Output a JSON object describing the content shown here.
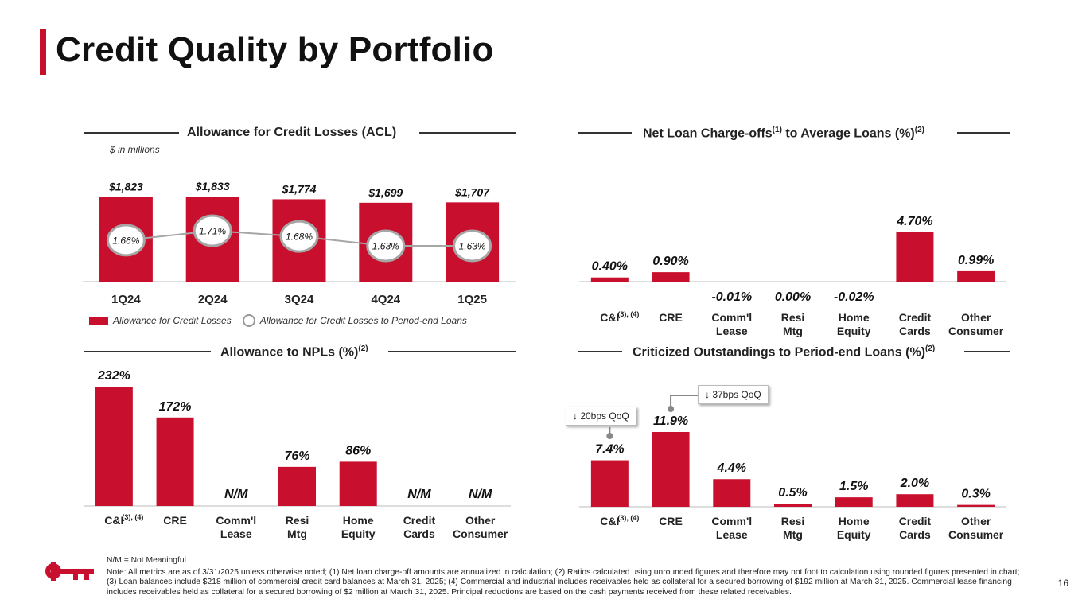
{
  "page": {
    "title": "Credit Quality by Portfolio",
    "page_number": "16"
  },
  "colors": {
    "accent": "#c8102e",
    "line": "#a6a6a6",
    "text": "#222222"
  },
  "chart_data": [
    {
      "id": "acl",
      "type": "bar",
      "title": "Allowance for Credit Losses (ACL)",
      "unit_note": "$ in millions",
      "categories": [
        "1Q24",
        "2Q24",
        "3Q24",
        "4Q24",
        "1Q25"
      ],
      "series": [
        {
          "name": "Allowance for Credit Losses",
          "values": [
            1823,
            1833,
            1774,
            1699,
            1707
          ],
          "labels": [
            "$1,823",
            "$1,833",
            "$1,774",
            "$1,699",
            "$1,707"
          ]
        },
        {
          "name": "Allowance for Credit Losses to Period-end Loans",
          "type": "line",
          "values": [
            1.66,
            1.71,
            1.68,
            1.63,
            1.63
          ],
          "labels": [
            "1.66%",
            "1.71%",
            "1.68%",
            "1.63%",
            "1.63%"
          ]
        }
      ],
      "ylim": [
        0,
        1900
      ],
      "line_ylim": [
        1.55,
        1.75
      ]
    },
    {
      "id": "nco",
      "type": "bar",
      "title": "Net Loan Charge-offs",
      "title_sup1": "(1)",
      "title_rest": " to Average Loans (%)",
      "title_sup2": "(2)",
      "categories": [
        "C&I",
        "CRE",
        "Comm'l Lease",
        "Resi Mtg",
        "Home Equity",
        "Credit Cards",
        "Other Consumer"
      ],
      "category_sups": [
        "(3), (4)",
        "",
        "",
        "",
        "",
        "",
        ""
      ],
      "values": [
        0.4,
        0.9,
        -0.01,
        0.0,
        -0.02,
        4.7,
        0.99
      ],
      "labels": [
        "0.40%",
        "0.90%",
        "-0.01%",
        "0.00%",
        "-0.02%",
        "4.70%",
        "0.99%"
      ],
      "ylim": [
        0,
        5.0
      ]
    },
    {
      "id": "npl",
      "type": "bar",
      "title": "Allowance to NPLs (%)",
      "title_sup": "(2)",
      "categories": [
        "C&I",
        "CRE",
        "Comm'l Lease",
        "Resi Mtg",
        "Home Equity",
        "Credit Cards",
        "Other Consumer"
      ],
      "category_sups": [
        "(3), (4)",
        "",
        "",
        "",
        "",
        "",
        ""
      ],
      "values": [
        232,
        172,
        null,
        76,
        86,
        null,
        null
      ],
      "labels": [
        "232%",
        "172%",
        "N/M",
        "76%",
        "86%",
        "N/M",
        "N/M"
      ],
      "ylim": [
        0,
        232
      ]
    },
    {
      "id": "crit",
      "type": "bar",
      "title": "Criticized Outstandings to Period-end Loans (%)",
      "title_sup": "(2)",
      "categories": [
        "C&I",
        "CRE",
        "Comm'l Lease",
        "Resi Mtg",
        "Home Equity",
        "Credit Cards",
        "Other Consumer"
      ],
      "category_sups": [
        "(3), (4)",
        "",
        "",
        "",
        "",
        "",
        ""
      ],
      "values": [
        7.4,
        11.9,
        4.4,
        0.5,
        1.5,
        2.0,
        0.3
      ],
      "labels": [
        "7.4%",
        "11.9%",
        "4.4%",
        "0.5%",
        "1.5%",
        "2.0%",
        "0.3%"
      ],
      "ylim": [
        0,
        11.9
      ],
      "annotations": [
        {
          "category": "C&I",
          "text": "↓ 20bps QoQ"
        },
        {
          "category": "CRE",
          "text": "↓ 37bps QoQ"
        }
      ]
    }
  ],
  "footnotes": {
    "nm": "N/M = Not Meaningful",
    "note": "Note: All metrics are as of 3/31/2025 unless otherwise noted; (1) Net loan charge-off amounts are annualized in calculation; (2) Ratios calculated using unrounded figures and therefore may not foot to calculation using rounded figures presented in chart; (3) Loan balances include $218 million of commercial credit card balances at March 31, 2025; (4) Commercial and industrial includes receivables held as collateral for a secured borrowing of $192 million at March 31, 2025. Commercial lease financing includes receivables held as collateral for a secured borrowing of $2 million at March 31, 2025. Principal reductions are based on the cash payments received from these related receivables."
  },
  "logo": {
    "name": "key-logo-icon"
  }
}
